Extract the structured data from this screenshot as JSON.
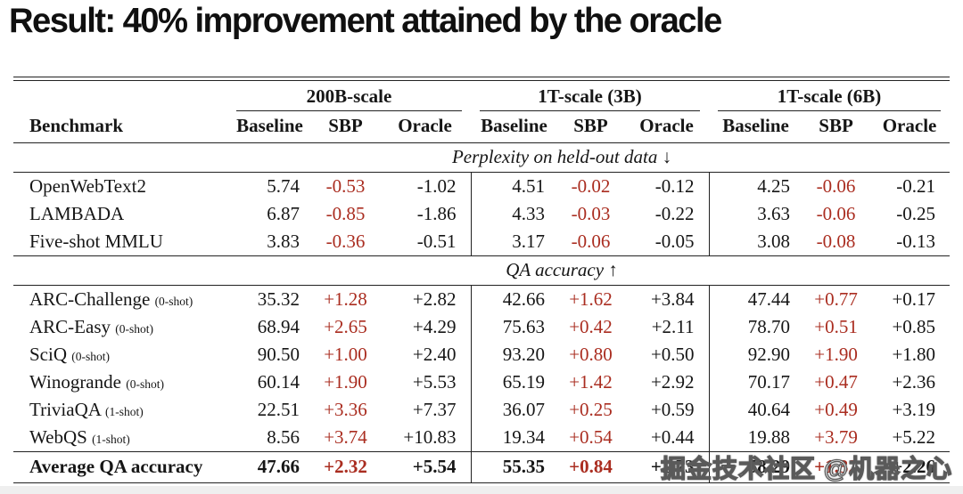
{
  "title": "Result: 40% improvement attained by the oracle",
  "watermark": "掘金技术社区 @机器之心",
  "colors": {
    "accent_red": "#aa2d20",
    "rule": "#222222",
    "text": "#161616"
  },
  "table": {
    "benchmark_header": "Benchmark",
    "groups": [
      {
        "label": "200B-scale"
      },
      {
        "label": "1T-scale (3B)"
      },
      {
        "label": "1T-scale (6B)"
      }
    ],
    "sub_headers": [
      "Baseline",
      "SBP",
      "Oracle"
    ],
    "sections": [
      {
        "label": "Perplexity on held-out data ↓",
        "rows": [
          {
            "name": "OpenWebText2",
            "shot": "",
            "values": [
              "5.74",
              "-0.53",
              "-1.02",
              "4.51",
              "-0.02",
              "-0.12",
              "4.25",
              "-0.06",
              "-0.21"
            ]
          },
          {
            "name": "LAMBADA",
            "shot": "",
            "values": [
              "6.87",
              "-0.85",
              "-1.86",
              "4.33",
              "-0.03",
              "-0.22",
              "3.63",
              "-0.06",
              "-0.25"
            ]
          },
          {
            "name": "Five-shot MMLU",
            "shot": "",
            "values": [
              "3.83",
              "-0.36",
              "-0.51",
              "3.17",
              "-0.06",
              "-0.05",
              "3.08",
              "-0.08",
              "-0.13"
            ]
          }
        ]
      },
      {
        "label": "QA accuracy ↑",
        "rows": [
          {
            "name": "ARC-Challenge",
            "shot": "(0-shot)",
            "values": [
              "35.32",
              "+1.28",
              "+2.82",
              "42.66",
              "+1.62",
              "+3.84",
              "47.44",
              "+0.77",
              "+0.17"
            ]
          },
          {
            "name": "ARC-Easy",
            "shot": "(0-shot)",
            "values": [
              "68.94",
              "+2.65",
              "+4.29",
              "75.63",
              "+0.42",
              "+2.11",
              "78.70",
              "+0.51",
              "+0.85"
            ]
          },
          {
            "name": "SciQ",
            "shot": "(0-shot)",
            "values": [
              "90.50",
              "+1.00",
              "+2.40",
              "93.20",
              "+0.80",
              "+0.50",
              "92.90",
              "+1.90",
              "+1.80"
            ]
          },
          {
            "name": "Winogrande",
            "shot": "(0-shot)",
            "values": [
              "60.14",
              "+1.90",
              "+5.53",
              "65.19",
              "+1.42",
              "+2.92",
              "70.17",
              "+0.47",
              "+2.36"
            ]
          },
          {
            "name": "TriviaQA",
            "shot": "(1-shot)",
            "values": [
              "22.51",
              "+3.36",
              "+7.37",
              "36.07",
              "+0.25",
              "+0.59",
              "40.64",
              "+0.49",
              "+3.19"
            ]
          },
          {
            "name": "WebQS",
            "shot": "(1-shot)",
            "values": [
              "8.56",
              "+3.74",
              "+10.83",
              "19.34",
              "+0.54",
              "+0.44",
              "19.88",
              "+3.79",
              "+5.22"
            ]
          }
        ]
      }
    ],
    "footer_row": {
      "name": "Average QA accuracy",
      "shot": "",
      "values": [
        "47.66",
        "+2.32",
        "+5.54",
        "55.35",
        "+0.84",
        "+1.73",
        "58.29",
        "+1.32",
        "+2.26"
      ]
    }
  }
}
